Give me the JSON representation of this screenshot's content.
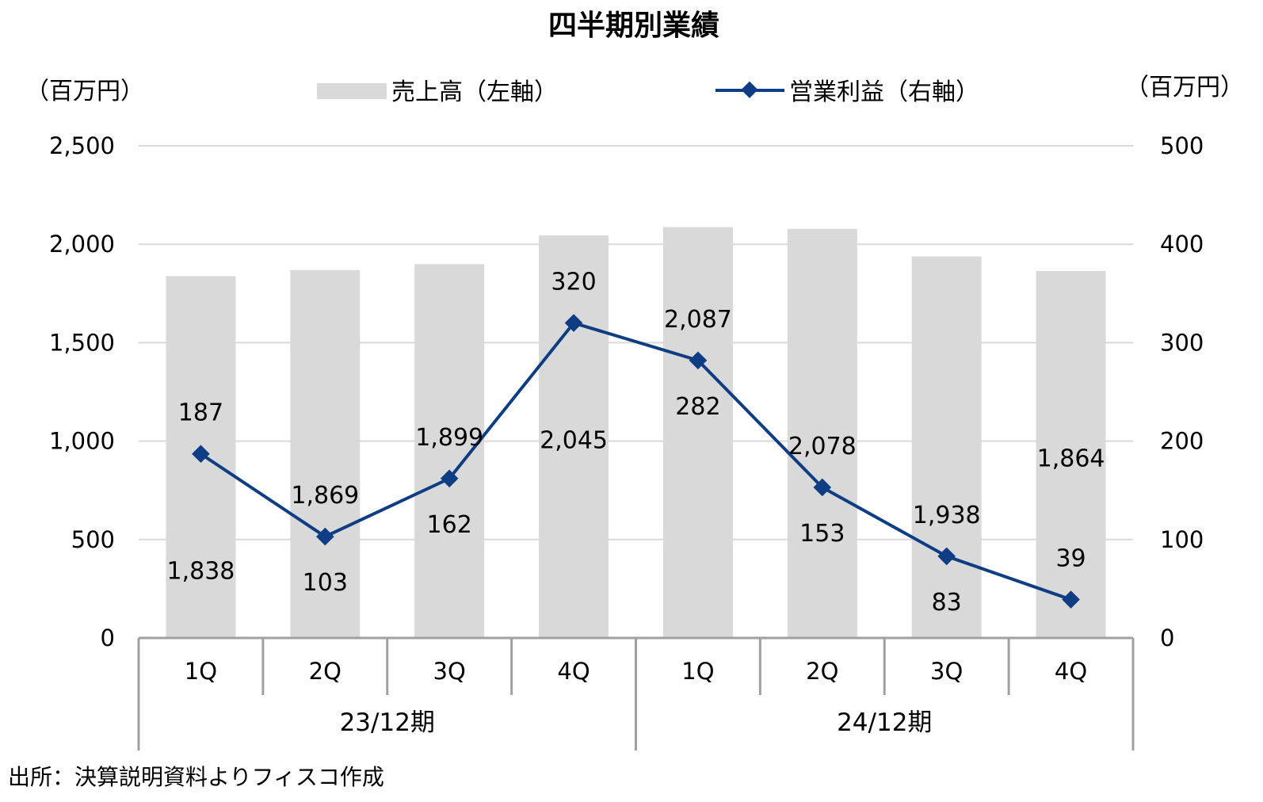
{
  "chart_data": {
    "type": "bar",
    "title": "四半期別業績",
    "left_unit": "（百万円）",
    "right_unit": "（百万円）",
    "source": "出所：決算説明資料よりフィスコ作成",
    "categories": [
      "1Q",
      "2Q",
      "3Q",
      "4Q",
      "1Q",
      "2Q",
      "3Q",
      "4Q"
    ],
    "groups": [
      {
        "label": "23/12期",
        "start": 0,
        "end": 3
      },
      {
        "label": "24/12期",
        "start": 4,
        "end": 7
      }
    ],
    "y_left": {
      "min": 0,
      "max": 2500,
      "step": 500,
      "ticks": [
        "0",
        "500",
        "1,000",
        "1,500",
        "2,000",
        "2,500"
      ]
    },
    "y_right": {
      "min": 0,
      "max": 500,
      "step": 100,
      "ticks": [
        "0",
        "100",
        "200",
        "300",
        "400",
        "500"
      ]
    },
    "grid": true,
    "legend_position": "top",
    "series": [
      {
        "name": "売上高（左軸）",
        "type": "bar",
        "axis": "left",
        "color": "#d9d9d9",
        "values": [
          1838,
          1869,
          1899,
          2045,
          2087,
          2078,
          1938,
          1864
        ],
        "labels": [
          "1,838",
          "1,869",
          "1,899",
          "2,045",
          "2,087",
          "2,078",
          "1,938",
          "1,864"
        ]
      },
      {
        "name": "営業利益（右軸）",
        "type": "line",
        "axis": "right",
        "color": "#0e3d84",
        "marker": "diamond",
        "values": [
          187,
          103,
          162,
          320,
          282,
          153,
          83,
          39
        ],
        "labels": [
          "187",
          "103",
          "162",
          "320",
          "282",
          "153",
          "83",
          "39"
        ]
      }
    ]
  }
}
